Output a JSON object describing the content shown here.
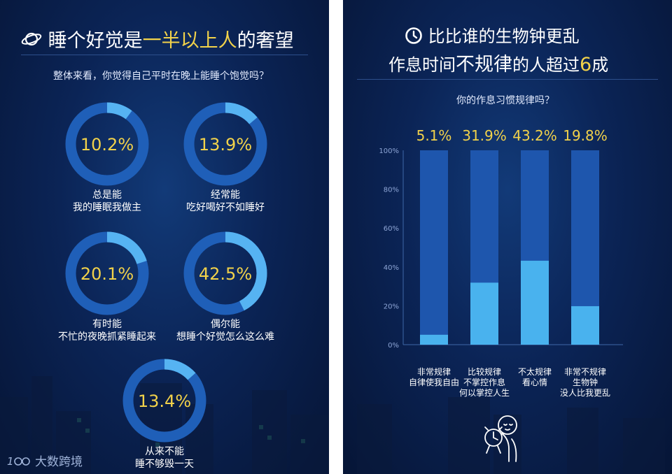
{
  "left": {
    "title_plain": "睡个好觉是",
    "title_highlight": "一半以上人",
    "title_end": "的奢望",
    "title_icon": "planet-icon",
    "question": "整体来看，你觉得自己平时在晚上能睡个饱觉吗？",
    "logo_text": "大数跨境",
    "logo_icon": "100-logo-icon"
  },
  "right": {
    "title_line1": "比比谁的生物钟更乱",
    "title_line2_plain": "作息时间",
    "title_line2_mid": "不规律",
    "title_line2_plain2": "的人超过",
    "title_line2_highlight": "6",
    "title_line2_end": "成",
    "title_icon": "clock-icon",
    "question": "你的作息习惯规律吗？",
    "illustration_icon": "alarm-clock-person-icon"
  },
  "chart_data": [
    {
      "type": "pie",
      "subtype": "donut",
      "title": "整体来看，你觉得自己平时在晚上能睡个饱觉吗？",
      "slices": [
        {
          "value": 10.2,
          "value_label": "10.2%",
          "line1": "总是能",
          "line2": "我的睡眠我做主"
        },
        {
          "value": 13.9,
          "value_label": "13.9%",
          "line1": "经常能",
          "line2": "吃好喝好不如睡好"
        },
        {
          "value": 20.1,
          "value_label": "20.1%",
          "line1": "有时能",
          "line2": "不忙的夜晚抓紧睡起来"
        },
        {
          "value": 42.5,
          "value_label": "42.5%",
          "line1": "偶尔能",
          "line2": "想睡个好觉怎么这么难"
        },
        {
          "value": 13.4,
          "value_label": "13.4%",
          "line1": "从来不能",
          "line2": "睡不够毁一天"
        }
      ],
      "colors": {
        "track": "#1f5fb8",
        "fill": "#56b3f2",
        "text": "#f2d24a"
      }
    },
    {
      "type": "bar",
      "title": "你的作息习惯规律吗？",
      "categories": [
        {
          "line1": "非常规律",
          "line2": "自律使我自由",
          "line3": ""
        },
        {
          "line1": "比较规律",
          "line2": "不掌控作息",
          "line3": "何以掌控人生"
        },
        {
          "line1": "不太规律",
          "line2": "看心情",
          "line3": ""
        },
        {
          "line1": "非常不规律",
          "line2": "生物钟",
          "line3": "没人比我更乱"
        }
      ],
      "values": [
        5.1,
        31.9,
        43.2,
        19.8
      ],
      "value_labels": [
        "5.1%",
        "31.9%",
        "43.2%",
        "19.8%"
      ],
      "yticks": [
        "0%",
        "20%",
        "40%",
        "60%",
        "80%",
        "100%"
      ],
      "ylim": [
        0,
        100
      ],
      "colors": {
        "track": "#1e56ad",
        "fill": "#49b2ee",
        "value_text": "#f2d24a"
      }
    }
  ]
}
